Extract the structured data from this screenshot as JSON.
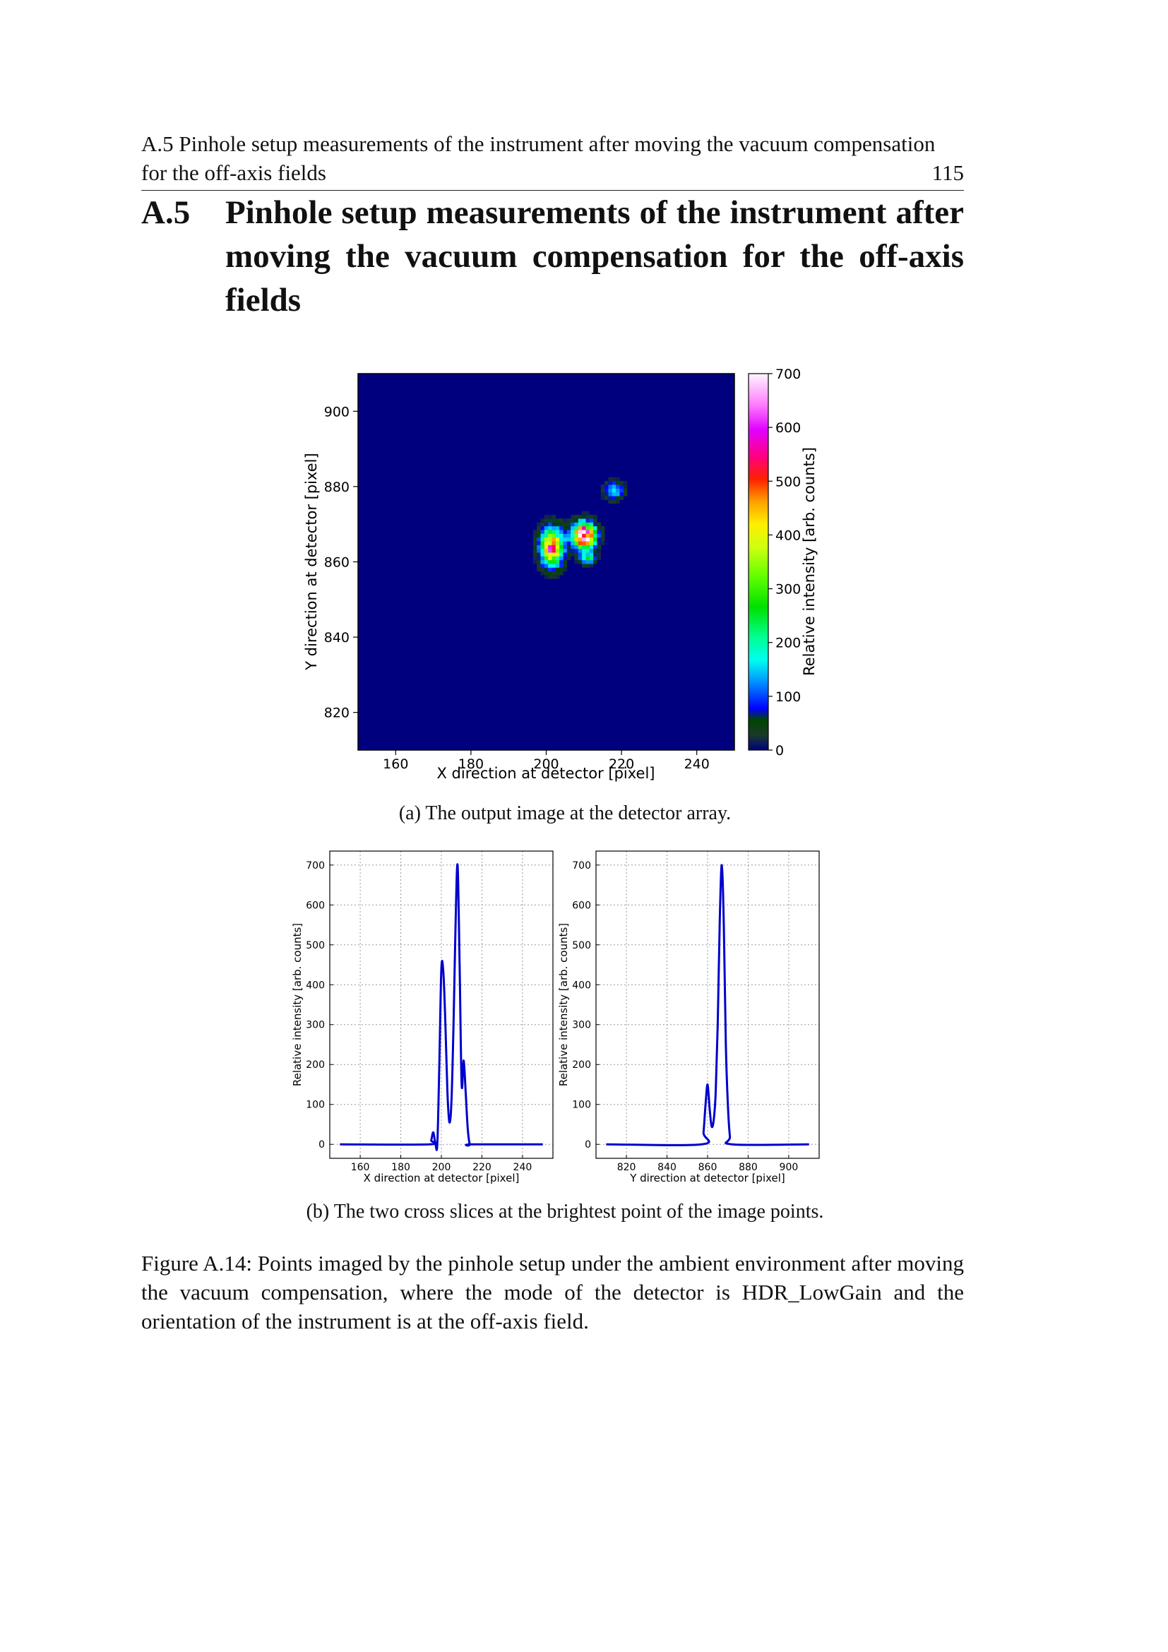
{
  "header": {
    "running_title": "A.5 Pinhole setup measurements of the instrument after moving the vacuum compensation for the off-axis fields",
    "page_number": "115"
  },
  "section": {
    "number": "A.5",
    "title": "Pinhole setup measurements of the instrument after moving the vacuum compensation for the off-axis fields"
  },
  "figure": {
    "subcaption_a": "(a) The output image at the detector array.",
    "subcaption_b": "(b) The two cross slices at the brightest point of the image points.",
    "caption": "Figure A.14: Points imaged by the pinhole setup under the ambient environment after moving the vacuum compensation, where the mode of the detector is HDR_LowGain and the orientation of the instrument is at the off-axis field."
  },
  "chart_data": [
    {
      "type": "heatmap",
      "xlabel": "X direction at detector [pixel]",
      "ylabel": "Y direction at detector [pixel]",
      "xlim": [
        150,
        250
      ],
      "ylim": [
        810,
        910
      ],
      "xticks": [
        160,
        180,
        200,
        220,
        240
      ],
      "yticks": [
        820,
        840,
        860,
        880,
        900
      ],
      "colorbar": {
        "label": "Relative intensity [arb. counts]",
        "range": [
          0,
          700
        ],
        "ticks": [
          0,
          100,
          200,
          300,
          400,
          500,
          600,
          700
        ],
        "colormap": "gist_ncar-like",
        "background": "#00007f"
      },
      "spots": [
        {
          "x": 201.5,
          "y": 864,
          "peak": 520
        },
        {
          "x": 210,
          "y": 867,
          "peak": 700
        },
        {
          "x": 211,
          "y": 861,
          "peak": 250
        },
        {
          "x": 218,
          "y": 879,
          "peak": 180
        }
      ]
    },
    {
      "type": "line",
      "xlabel": "X direction at detector [pixel]",
      "ylabel": "Relative intensity [arb. counts]",
      "xlim": [
        145,
        255
      ],
      "ylim": [
        -35,
        735
      ],
      "xticks": [
        160,
        180,
        200,
        220,
        240
      ],
      "yticks": [
        0,
        100,
        200,
        300,
        400,
        500,
        600,
        700
      ],
      "grid": true,
      "color": "#0000cc",
      "x": [
        150,
        194,
        195,
        196,
        197,
        198,
        199,
        200,
        201,
        202,
        203,
        204,
        205,
        206,
        207,
        208,
        209,
        210,
        211,
        212,
        213,
        214,
        215,
        250
      ],
      "values": [
        0,
        0,
        10,
        30,
        5,
        0,
        200,
        440,
        430,
        300,
        130,
        55,
        110,
        300,
        550,
        700,
        450,
        150,
        210,
        130,
        40,
        0,
        0,
        0
      ]
    },
    {
      "type": "line",
      "xlabel": "Y direction at detector [pixel]",
      "ylabel": "Relative intensity [arb. counts]",
      "xlim": [
        805,
        915
      ],
      "ylim": [
        -35,
        735
      ],
      "xticks": [
        820,
        840,
        860,
        880,
        900
      ],
      "yticks": [
        0,
        100,
        200,
        300,
        400,
        500,
        600,
        700
      ],
      "grid": true,
      "color": "#0000cc",
      "x": [
        810,
        857,
        858,
        859,
        860,
        861,
        862,
        863,
        864,
        865,
        866,
        867,
        868,
        869,
        870,
        871,
        872,
        910
      ],
      "values": [
        0,
        0,
        30,
        100,
        150,
        90,
        45,
        60,
        130,
        300,
        560,
        700,
        550,
        250,
        100,
        20,
        0,
        0
      ]
    }
  ]
}
